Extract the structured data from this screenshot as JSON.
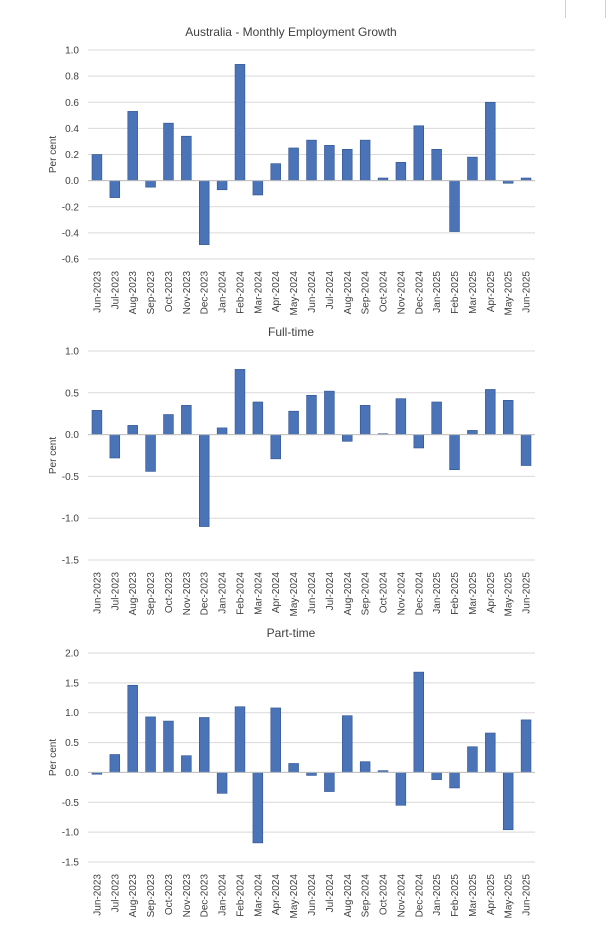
{
  "chart_data": [
    {
      "type": "bar",
      "title": "Australia - Monthly Employment Growth",
      "ylabel": "Per cent",
      "ylim": [
        -0.6,
        1.0
      ],
      "yticks": [
        "1.0",
        "0.8",
        "0.6",
        "0.4",
        "0.2",
        "0.0",
        "-0.2",
        "-0.4",
        "-0.6"
      ],
      "categories": [
        "Jun-2023",
        "Jul-2023",
        "Aug-2023",
        "Sep-2023",
        "Oct-2023",
        "Nov-2023",
        "Dec-2023",
        "Jan-2024",
        "Feb-2024",
        "Mar-2024",
        "Apr-2024",
        "May-2024",
        "Jun-2024",
        "Jul-2024",
        "Aug-2024",
        "Sep-2024",
        "Oct-2024",
        "Nov-2024",
        "Dec-2024",
        "Jan-2025",
        "Feb-2025",
        "Mar-2025",
        "Apr-2025",
        "May-2025",
        "Jun-2025"
      ],
      "values": [
        0.2,
        -0.13,
        0.53,
        -0.05,
        0.44,
        0.34,
        -0.49,
        -0.07,
        0.89,
        -0.11,
        0.13,
        0.25,
        0.31,
        0.27,
        0.24,
        0.31,
        0.02,
        0.14,
        0.42,
        0.24,
        -0.39,
        0.18,
        0.6,
        -0.02,
        0.02
      ],
      "grid": true,
      "color": "#4a73b8"
    },
    {
      "type": "bar",
      "title": "Full-time",
      "ylabel": "Per cent",
      "ylim": [
        -1.5,
        1.0
      ],
      "yticks": [
        "1.0",
        "0.5",
        "0.0",
        "-0.5",
        "-1.0",
        "-1.5"
      ],
      "categories": [
        "Jun-2023",
        "Jul-2023",
        "Aug-2023",
        "Sep-2023",
        "Oct-2023",
        "Nov-2023",
        "Dec-2023",
        "Jan-2024",
        "Feb-2024",
        "Mar-2024",
        "Apr-2024",
        "May-2024",
        "Jun-2024",
        "Jul-2024",
        "Aug-2024",
        "Sep-2024",
        "Oct-2024",
        "Nov-2024",
        "Dec-2024",
        "Jan-2025",
        "Feb-2025",
        "Mar-2025",
        "Apr-2025",
        "May-2025",
        "Jun-2025"
      ],
      "values": [
        0.29,
        -0.28,
        0.11,
        -0.44,
        0.24,
        0.35,
        -1.1,
        0.08,
        0.78,
        0.39,
        -0.29,
        0.28,
        0.47,
        0.52,
        -0.08,
        0.35,
        0.01,
        0.43,
        -0.16,
        0.39,
        -0.42,
        0.05,
        0.54,
        0.41,
        -0.37
      ],
      "grid": true,
      "color": "#4a73b8"
    },
    {
      "type": "bar",
      "title": "Part-time",
      "ylabel": "Per cent",
      "ylim": [
        -1.5,
        2.0
      ],
      "yticks": [
        "2.0",
        "1.5",
        "1.0",
        "0.5",
        "0.0",
        "-0.5",
        "-1.0",
        "-1.5"
      ],
      "categories": [
        "Jun-2023",
        "Jul-2023",
        "Aug-2023",
        "Sep-2023",
        "Oct-2023",
        "Nov-2023",
        "Dec-2023",
        "Jan-2024",
        "Feb-2024",
        "Mar-2024",
        "Apr-2024",
        "May-2024",
        "Jun-2024",
        "Jul-2024",
        "Aug-2024",
        "Sep-2024",
        "Oct-2024",
        "Nov-2024",
        "Dec-2024",
        "Jan-2025",
        "Feb-2025",
        "Mar-2025",
        "Apr-2025",
        "May-2025",
        "Jun-2025"
      ],
      "values": [
        -0.03,
        0.3,
        1.46,
        0.93,
        0.86,
        0.28,
        0.92,
        -0.35,
        1.1,
        -1.18,
        1.08,
        0.15,
        -0.05,
        -0.32,
        0.95,
        0.18,
        0.03,
        -0.55,
        1.68,
        -0.12,
        -0.26,
        0.43,
        0.66,
        -0.96,
        0.88
      ],
      "grid": true,
      "color": "#4a73b8"
    }
  ]
}
